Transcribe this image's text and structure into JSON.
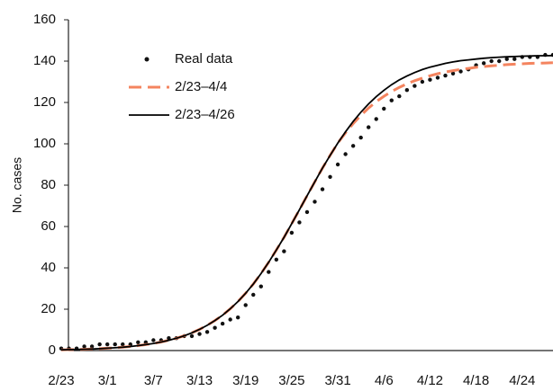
{
  "chart_data": {
    "type": "line",
    "y_label": "No. cases",
    "x": [
      "2/23",
      "2/24",
      "2/25",
      "2/26",
      "2/27",
      "2/28",
      "3/1",
      "3/2",
      "3/3",
      "3/4",
      "3/5",
      "3/6",
      "3/7",
      "3/8",
      "3/9",
      "3/10",
      "3/11",
      "3/12",
      "3/13",
      "3/14",
      "3/15",
      "3/16",
      "3/17",
      "3/18",
      "3/19",
      "3/20",
      "3/21",
      "3/22",
      "3/23",
      "3/24",
      "3/25",
      "3/26",
      "3/27",
      "3/28",
      "3/29",
      "3/30",
      "3/31",
      "4/1",
      "4/2",
      "4/3",
      "4/4",
      "4/5",
      "4/6",
      "4/7",
      "4/8",
      "4/9",
      "4/10",
      "4/11",
      "4/12",
      "4/13",
      "4/14",
      "4/15",
      "4/16",
      "4/17",
      "4/18",
      "4/19",
      "4/20",
      "4/21",
      "4/22",
      "4/23",
      "4/24",
      "4/25",
      "4/26",
      "4/27",
      "4/28"
    ],
    "xticks": [
      "2/23",
      "3/1",
      "3/7",
      "3/13",
      "3/19",
      "3/25",
      "3/31",
      "4/6",
      "4/12",
      "4/18",
      "4/24"
    ],
    "ylim": [
      0,
      160
    ],
    "yticks": [
      0,
      20,
      40,
      60,
      80,
      100,
      120,
      140,
      160
    ],
    "grid": false,
    "series": [
      {
        "name": "Real data",
        "color": "#111111",
        "style": "dots",
        "values": [
          1,
          1,
          1,
          2,
          2,
          3,
          3,
          3,
          3,
          3,
          4,
          4,
          5,
          5,
          6,
          6,
          7,
          7,
          8,
          9,
          11,
          13,
          15,
          16,
          22,
          27,
          31,
          38,
          44,
          48,
          57,
          62,
          67,
          72,
          78,
          84,
          90,
          95,
          99,
          103,
          108,
          112,
          117,
          121,
          123,
          126,
          128,
          130,
          131,
          132,
          133,
          134,
          135,
          136,
          138,
          139,
          140,
          140,
          141,
          141,
          142,
          142,
          142,
          143,
          143
        ]
      },
      {
        "name": "2/23–4/4",
        "color": "#f4845f",
        "style": "dashed",
        "values": [
          0.36,
          0.43,
          0.52,
          0.63,
          0.76,
          0.92,
          1.12,
          1.35,
          1.63,
          1.96,
          2.37,
          2.85,
          3.44,
          4.13,
          4.97,
          5.96,
          7.14,
          8.56,
          10.2,
          12.2,
          14.5,
          17.1,
          20.2,
          23.7,
          27.7,
          32.2,
          37.2,
          42.7,
          48.6,
          54.8,
          61.4,
          68.1,
          74.9,
          81.6,
          88.2,
          94.4,
          100.4,
          105.3,
          109.8,
          113.8,
          117.3,
          120.4,
          123.0,
          125.3,
          127.3,
          129.0,
          130.5,
          131.8,
          132.9,
          133.9,
          134.7,
          135.4,
          136.0,
          136.5,
          137.0,
          137.4,
          137.7,
          138.0,
          138.3,
          138.5,
          138.7,
          138.9,
          139.0,
          139.1,
          139.2
        ]
      },
      {
        "name": "2/23–4/26",
        "color": "#000000",
        "style": "solid",
        "values": [
          0.36,
          0.43,
          0.52,
          0.63,
          0.76,
          0.92,
          1.12,
          1.35,
          1.63,
          1.96,
          2.37,
          2.85,
          3.44,
          4.13,
          4.97,
          5.96,
          7.14,
          8.56,
          10.2,
          12.2,
          14.5,
          17.1,
          20.2,
          23.7,
          27.7,
          32.2,
          37.2,
          42.7,
          48.6,
          54.8,
          61.4,
          68.1,
          74.9,
          81.6,
          88.2,
          94.4,
          100.4,
          105.8,
          110.8,
          115.3,
          119.3,
          122.8,
          125.9,
          128.6,
          130.9,
          132.8,
          134.5,
          135.9,
          137.1,
          138.0,
          138.9,
          139.6,
          140.2,
          140.6,
          141.0,
          141.4,
          141.7,
          141.9,
          142.1,
          142.2,
          142.4,
          142.5,
          142.6,
          142.6,
          142.7
        ]
      }
    ]
  }
}
